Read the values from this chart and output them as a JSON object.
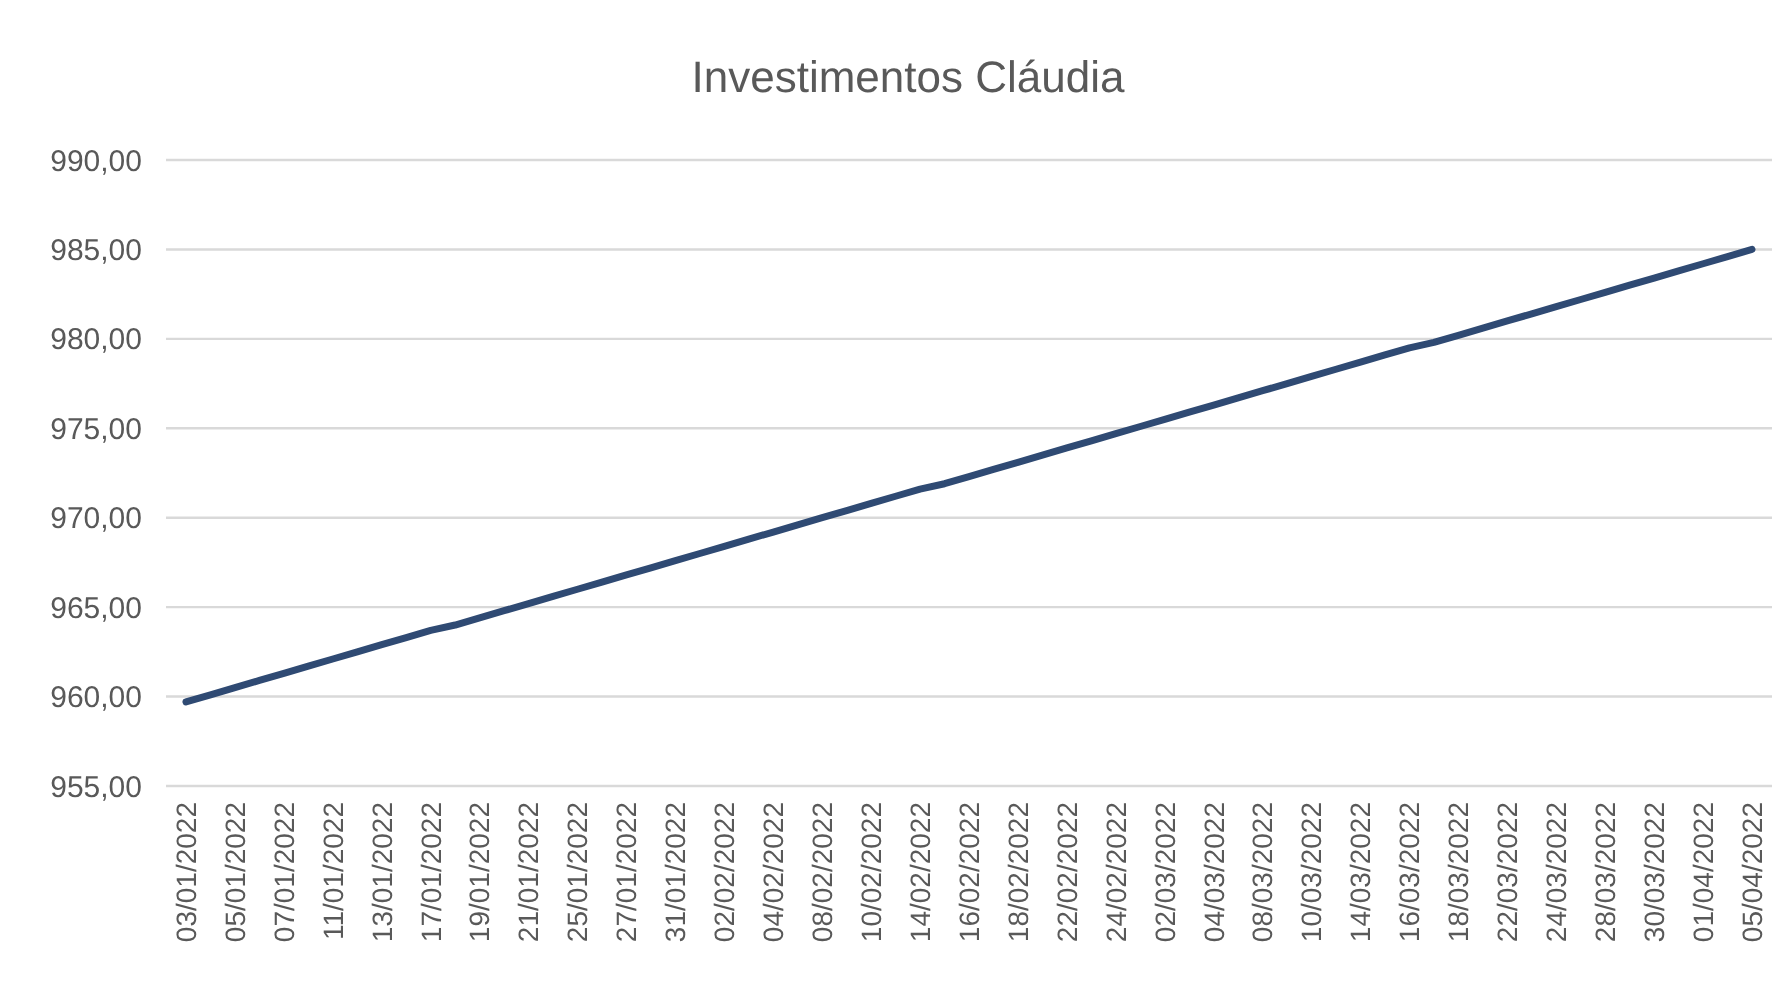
{
  "chart_data": {
    "type": "line",
    "title": "Investimentos Cláudia",
    "categories": [
      "03/01/2022",
      null,
      "05/01/2022",
      null,
      "07/01/2022",
      null,
      "11/01/2022",
      null,
      "13/01/2022",
      null,
      "17/01/2022",
      null,
      "19/01/2022",
      null,
      "21/01/2022",
      null,
      "25/01/2022",
      null,
      "27/01/2022",
      null,
      "31/01/2022",
      null,
      "02/02/2022",
      null,
      "04/02/2022",
      null,
      "08/02/2022",
      null,
      "10/02/2022",
      null,
      "14/02/2022",
      null,
      "16/02/2022",
      null,
      "18/02/2022",
      null,
      "22/02/2022",
      null,
      "24/02/2022",
      null,
      "02/03/2022",
      null,
      "04/03/2022",
      null,
      "08/03/2022",
      null,
      "10/03/2022",
      null,
      "14/03/2022",
      null,
      "16/03/2022",
      null,
      "18/03/2022",
      null,
      "22/03/2022",
      null,
      "24/03/2022",
      null,
      "28/03/2022",
      null,
      "30/03/2022",
      null,
      "01/04/2022",
      null,
      "05/04/2022"
    ],
    "series": [
      {
        "color": "#2f4a73",
        "values": [
          959.7,
          960.1,
          960.5,
          960.9,
          961.3,
          961.7,
          962.1,
          962.5,
          962.9,
          963.3,
          963.7,
          964.0,
          964.4,
          964.8,
          965.2,
          965.6,
          966.0,
          966.4,
          966.8,
          967.2,
          967.6,
          968.0,
          968.4,
          968.8,
          969.2,
          969.6,
          970.0,
          970.4,
          970.8,
          971.2,
          971.6,
          971.9,
          972.3,
          972.7,
          973.1,
          973.5,
          973.9,
          974.3,
          974.7,
          975.1,
          975.5,
          975.9,
          976.3,
          976.7,
          977.1,
          977.5,
          977.9,
          978.3,
          978.7,
          979.1,
          979.5,
          979.8,
          980.2,
          980.6,
          981.0,
          981.4,
          981.8,
          982.2,
          982.6,
          983.0,
          983.4,
          983.8,
          984.2,
          984.6,
          985.0
        ]
      }
    ],
    "ylim": [
      955,
      990
    ],
    "yticks": [
      {
        "value": 955,
        "label": "955,00"
      },
      {
        "value": 960,
        "label": "960,00"
      },
      {
        "value": 965,
        "label": "965,00"
      },
      {
        "value": 970,
        "label": "970,00"
      },
      {
        "value": 975,
        "label": "975,00"
      },
      {
        "value": 980,
        "label": "980,00"
      },
      {
        "value": 985,
        "label": "985,00"
      },
      {
        "value": 990,
        "label": "990,00"
      }
    ],
    "grid": "y",
    "marker": "none",
    "line_style": "solid"
  }
}
